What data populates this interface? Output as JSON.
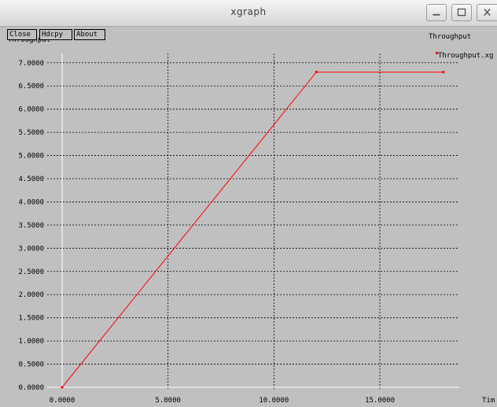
{
  "window": {
    "title": "xgraph"
  },
  "controls": {
    "close_label": "Close",
    "hardcopy_label": "Hdcpy",
    "about_label": "About"
  },
  "colors": {
    "background": "#c0c0c0",
    "grid": "#000000",
    "series": "#ff0000",
    "axis_zero": "#ffffff"
  },
  "chart_data": {
    "type": "line",
    "title": "Throughput",
    "ylabel": "Throughput",
    "xlabel": "Tim",
    "xlim": [
      0,
      18.6
    ],
    "ylim": [
      0,
      7.2
    ],
    "x_ticks": [
      0,
      5,
      10,
      15
    ],
    "x_tick_labels": [
      "0.0000",
      "5.0000",
      "10.0000",
      "15.0000"
    ],
    "y_ticks": [
      0,
      0.5,
      1,
      1.5,
      2,
      2.5,
      3,
      3.5,
      4,
      4.5,
      5,
      5.5,
      6,
      6.5,
      7
    ],
    "y_tick_labels": [
      "0.0000",
      "0.5000",
      "1.0000",
      "1.5000",
      "2.0000",
      "2.5000",
      "3.0000",
      "3.5000",
      "4.0000",
      "4.5000",
      "5.0000",
      "5.5000",
      "6.0000",
      "6.5000",
      "7.0000"
    ],
    "grid": true,
    "legend_position": "top-right",
    "series": [
      {
        "name": "Throughput.xg",
        "color": "#ff0000",
        "x": [
          0,
          12,
          18
        ],
        "y": [
          0,
          6.8,
          6.8
        ]
      }
    ]
  }
}
